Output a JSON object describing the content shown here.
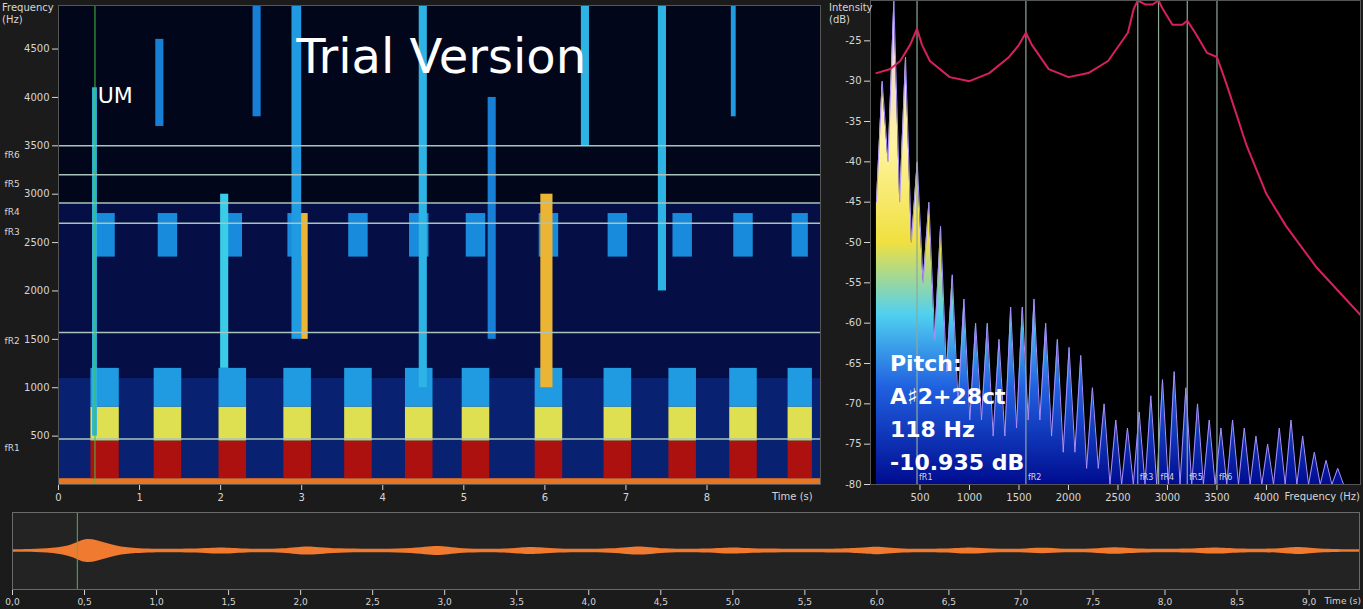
{
  "chart_data": [
    {
      "type": "spectrogram",
      "xlabel": "Time (s)",
      "ylabel": "Frequency (Hz)",
      "xlim": [
        0,
        9.4
      ],
      "xticks": [
        0,
        1,
        2,
        3,
        4,
        5,
        6,
        7,
        8
      ],
      "ylim": [
        0,
        4950
      ],
      "yticks": [
        500,
        1000,
        1500,
        2000,
        2500,
        3000,
        3500,
        4000,
        4500
      ],
      "level_range": [
        0,
        1
      ],
      "cells": [
        [
          0,
          9.4,
          0,
          1100,
          0.2
        ],
        [
          0,
          9.4,
          1100,
          2900,
          0.13
        ],
        [
          0,
          9.4,
          2900,
          4950,
          0.05
        ],
        [
          0,
          9.4,
          0,
          60,
          0.8
        ],
        [
          0.4,
          0.75,
          60,
          450,
          0.95
        ],
        [
          0.4,
          0.75,
          450,
          800,
          0.7
        ],
        [
          0.4,
          0.75,
          800,
          1200,
          0.45
        ],
        [
          0.45,
          0.7,
          2350,
          2800,
          0.42
        ],
        [
          1.18,
          1.52,
          60,
          450,
          0.95
        ],
        [
          1.18,
          1.52,
          450,
          800,
          0.7
        ],
        [
          1.18,
          1.52,
          800,
          1200,
          0.45
        ],
        [
          1.23,
          1.47,
          2350,
          2800,
          0.42
        ],
        [
          1.98,
          2.32,
          60,
          450,
          0.95
        ],
        [
          1.98,
          2.32,
          450,
          800,
          0.7
        ],
        [
          1.98,
          2.32,
          800,
          1200,
          0.45
        ],
        [
          2.03,
          2.27,
          2350,
          2800,
          0.42
        ],
        [
          2.78,
          3.12,
          60,
          450,
          0.95
        ],
        [
          2.78,
          3.12,
          450,
          800,
          0.7
        ],
        [
          2.78,
          3.12,
          800,
          1200,
          0.45
        ],
        [
          2.83,
          3.07,
          2350,
          2800,
          0.42
        ],
        [
          3.53,
          3.87,
          60,
          450,
          0.95
        ],
        [
          3.53,
          3.87,
          450,
          800,
          0.7
        ],
        [
          3.53,
          3.87,
          800,
          1200,
          0.45
        ],
        [
          3.58,
          3.82,
          2350,
          2800,
          0.42
        ],
        [
          4.28,
          4.62,
          60,
          450,
          0.95
        ],
        [
          4.28,
          4.62,
          450,
          800,
          0.7
        ],
        [
          4.28,
          4.62,
          800,
          1200,
          0.45
        ],
        [
          4.33,
          4.57,
          2350,
          2800,
          0.42
        ],
        [
          4.98,
          5.32,
          60,
          450,
          0.95
        ],
        [
          4.98,
          5.32,
          450,
          800,
          0.7
        ],
        [
          4.98,
          5.32,
          800,
          1200,
          0.45
        ],
        [
          5.03,
          5.27,
          2350,
          2800,
          0.42
        ],
        [
          5.88,
          6.22,
          60,
          450,
          0.95
        ],
        [
          5.88,
          6.22,
          450,
          800,
          0.7
        ],
        [
          5.88,
          6.22,
          800,
          1200,
          0.45
        ],
        [
          5.93,
          6.17,
          2350,
          2800,
          0.42
        ],
        [
          6.73,
          7.07,
          60,
          450,
          0.95
        ],
        [
          6.73,
          7.07,
          450,
          800,
          0.7
        ],
        [
          6.73,
          7.07,
          800,
          1200,
          0.45
        ],
        [
          6.78,
          7.02,
          2350,
          2800,
          0.42
        ],
        [
          7.53,
          7.87,
          60,
          450,
          0.95
        ],
        [
          7.53,
          7.87,
          450,
          800,
          0.7
        ],
        [
          7.53,
          7.87,
          800,
          1200,
          0.45
        ],
        [
          7.58,
          7.82,
          2350,
          2800,
          0.42
        ],
        [
          8.28,
          8.62,
          60,
          450,
          0.95
        ],
        [
          8.28,
          8.62,
          450,
          800,
          0.7
        ],
        [
          8.28,
          8.62,
          800,
          1200,
          0.45
        ],
        [
          8.33,
          8.57,
          2350,
          2800,
          0.42
        ],
        [
          9.0,
          9.3,
          60,
          450,
          0.95
        ],
        [
          9.0,
          9.3,
          450,
          800,
          0.7
        ],
        [
          9.0,
          9.3,
          800,
          1200,
          0.45
        ],
        [
          9.05,
          9.25,
          2350,
          2800,
          0.42
        ],
        [
          0.42,
          0.48,
          500,
          4100,
          0.5
        ],
        [
          2.0,
          2.1,
          1200,
          3000,
          0.55
        ],
        [
          2.88,
          3.0,
          1500,
          4950,
          0.45
        ],
        [
          3.0,
          3.08,
          1500,
          2800,
          0.75
        ],
        [
          4.45,
          4.55,
          1000,
          4950,
          0.5
        ],
        [
          5.3,
          5.4,
          1500,
          4000,
          0.4
        ],
        [
          5.95,
          6.1,
          1000,
          3000,
          0.75
        ],
        [
          6.45,
          6.55,
          3500,
          4950,
          0.5
        ],
        [
          7.4,
          7.5,
          2000,
          4950,
          0.5
        ],
        [
          8.3,
          8.36,
          3800,
          4950,
          0.45
        ],
        [
          1.2,
          1.3,
          3700,
          4600,
          0.4
        ],
        [
          2.4,
          2.5,
          3800,
          4950,
          0.4
        ]
      ],
      "resonances": [
        {
          "label": "fR1",
          "value": 470
        },
        {
          "label": "fR2",
          "value": 1570
        },
        {
          "label": "fR3",
          "value": 2700
        },
        {
          "label": "fR4",
          "value": 2910
        },
        {
          "label": "fR5",
          "value": 3200
        },
        {
          "label": "fR6",
          "value": 3500
        }
      ],
      "cursor_time": 0.45,
      "annotations": [
        {
          "text": "UM",
          "x": 0.7,
          "y": 4020
        },
        {
          "text": "Trial Version",
          "x": 4.72,
          "y": 4410
        }
      ]
    },
    {
      "type": "spectrum",
      "xlabel": "Frequency (Hz)",
      "ylabel": "Intensity (dB)",
      "xlim": [
        0,
        4950
      ],
      "xticks": [
        500,
        1000,
        1500,
        2000,
        2500,
        3000,
        3500,
        4000
      ],
      "ylim": [
        -80,
        -20
      ],
      "yticks": [
        -80,
        -75,
        -70,
        -65,
        -60,
        -55,
        -50,
        -45,
        -40,
        -35,
        -30,
        -25
      ],
      "series": [
        {
          "type": "area",
          "color": "#a890ff",
          "x": [
            60,
            118,
            177,
            236,
            295,
            354,
            413,
            472,
            531,
            590,
            649,
            708,
            767,
            826,
            885,
            944,
            1003,
            1062,
            1121,
            1180,
            1239,
            1298,
            1357,
            1416,
            1475,
            1534,
            1593,
            1652,
            1711,
            1770,
            1829,
            1888,
            1947,
            2006,
            2065,
            2124,
            2183,
            2242,
            2301,
            2360,
            2419,
            2478,
            2537,
            2596,
            2655,
            2714,
            2773,
            2832,
            2891,
            2950,
            3009,
            3068,
            3127,
            3186,
            3245,
            3304,
            3363,
            3422,
            3481,
            3540,
            3599,
            3658,
            3717,
            3776,
            3835,
            3894,
            3953,
            4012,
            4071,
            4130,
            4189,
            4248,
            4307,
            4366,
            4425,
            4484,
            4543,
            4602,
            4661,
            4720,
            4779
          ],
          "values": [
            -45,
            -30,
            -40,
            -20,
            -45,
            -27,
            -50,
            -40,
            -55,
            -45,
            -62,
            -48,
            -66,
            -54,
            -70,
            -57,
            -72,
            -60,
            -72,
            -60,
            -74,
            -62,
            -74,
            -58,
            -73,
            -58,
            -72,
            -57,
            -72,
            -60,
            -74,
            -62,
            -76,
            -63,
            -76,
            -64,
            -78,
            -68,
            -78,
            -70,
            -80,
            -72,
            -80,
            -73,
            -80,
            -71,
            -80,
            -69,
            -80,
            -67,
            -80,
            -66,
            -80,
            -68,
            -80,
            -70,
            -80,
            -72,
            -80,
            -73,
            -80,
            -72,
            -80,
            -73,
            -80,
            -74,
            -80,
            -75,
            -80,
            -73,
            -80,
            -72,
            -80,
            -74,
            -80,
            -76,
            -80,
            -77,
            -80,
            -78,
            -80
          ]
        },
        {
          "type": "line",
          "color": "#d8205c",
          "x": [
            60,
            200,
            300,
            400,
            470,
            520,
            600,
            800,
            1000,
            1200,
            1400,
            1500,
            1570,
            1630,
            1800,
            2000,
            2200,
            2400,
            2600,
            2660,
            2700,
            2780,
            2850,
            2910,
            2950,
            3050,
            3150,
            3200,
            3280,
            3400,
            3500,
            3600,
            3800,
            4000,
            4200,
            4500,
            4800,
            4950
          ],
          "values": [
            -29,
            -28.5,
            -27.5,
            -25.5,
            -23.5,
            -25.5,
            -27.5,
            -29.5,
            -30,
            -29,
            -27,
            -25.5,
            -24,
            -25.5,
            -28.5,
            -29.5,
            -29,
            -27.5,
            -24,
            -21,
            -20,
            -20.5,
            -20.5,
            -20,
            -21,
            -23,
            -23,
            -22.5,
            -24,
            -26.5,
            -27,
            -30.5,
            -38,
            -44,
            -48,
            -53,
            -57,
            -59
          ]
        }
      ],
      "resonances": [
        {
          "label": "fR1",
          "value": 470
        },
        {
          "label": "fR2",
          "value": 1570
        },
        {
          "label": "fR3",
          "value": 2700
        },
        {
          "label": "fR4",
          "value": 2910
        },
        {
          "label": "fR5",
          "value": 3200
        },
        {
          "label": "fR6",
          "value": 3500
        }
      ],
      "readout": [
        "Pitch:",
        "A♯2+28ct",
        "118 Hz",
        "-10.935 dB"
      ]
    },
    {
      "type": "waveform",
      "xlabel": "Time (s)",
      "xlim": [
        0,
        9.35
      ],
      "xticks": [
        {
          "value": 0,
          "label": "0,0"
        },
        {
          "value": 0.5,
          "label": "0,5"
        },
        {
          "value": 1,
          "label": "1,0"
        },
        {
          "value": 1.5,
          "label": "1,5"
        },
        {
          "value": 2,
          "label": "2,0"
        },
        {
          "value": 2.5,
          "label": "2,5"
        },
        {
          "value": 3,
          "label": "3,0"
        },
        {
          "value": 3.5,
          "label": "3,5"
        },
        {
          "value": 4,
          "label": "4,0"
        },
        {
          "value": 4.5,
          "label": "4,5"
        },
        {
          "value": 5,
          "label": "5,0"
        },
        {
          "value": 5.5,
          "label": "5,5"
        },
        {
          "value": 6,
          "label": "6,0"
        },
        {
          "value": 6.5,
          "label": "6,5"
        },
        {
          "value": 7,
          "label": "7,0"
        },
        {
          "value": 7.5,
          "label": "7,5"
        },
        {
          "value": 8,
          "label": "8,0"
        },
        {
          "value": 8.5,
          "label": "8,5"
        },
        {
          "value": 9,
          "label": "9,0"
        }
      ],
      "ylim": [
        -1,
        1
      ],
      "tick_labels": "x",
      "color": "#f07a30",
      "cursor_time": 0.45,
      "x": [
        0,
        0.4,
        0.5,
        0.65,
        0.8,
        1.3,
        1.45,
        1.6,
        1.9,
        2.05,
        2.2,
        2.8,
        2.95,
        3.1,
        3.45,
        3.6,
        3.75,
        4.2,
        4.35,
        4.5,
        4.85,
        5.0,
        5.15,
        5.85,
        6.0,
        6.15,
        6.5,
        6.65,
        6.8,
        7.0,
        7.15,
        7.3,
        7.5,
        7.65,
        7.8,
        8.2,
        8.35,
        8.5,
        8.8,
        8.92,
        9.05,
        9.35
      ],
      "values": [
        0.03,
        0.05,
        0.38,
        0.2,
        0.04,
        0.04,
        0.1,
        0.04,
        0.04,
        0.14,
        0.04,
        0.04,
        0.16,
        0.04,
        0.04,
        0.12,
        0.04,
        0.04,
        0.14,
        0.04,
        0.04,
        0.1,
        0.04,
        0.04,
        0.13,
        0.04,
        0.04,
        0.1,
        0.04,
        0.04,
        0.09,
        0.04,
        0.04,
        0.11,
        0.04,
        0.04,
        0.1,
        0.04,
        0.04,
        0.12,
        0.04,
        0.03
      ]
    }
  ]
}
